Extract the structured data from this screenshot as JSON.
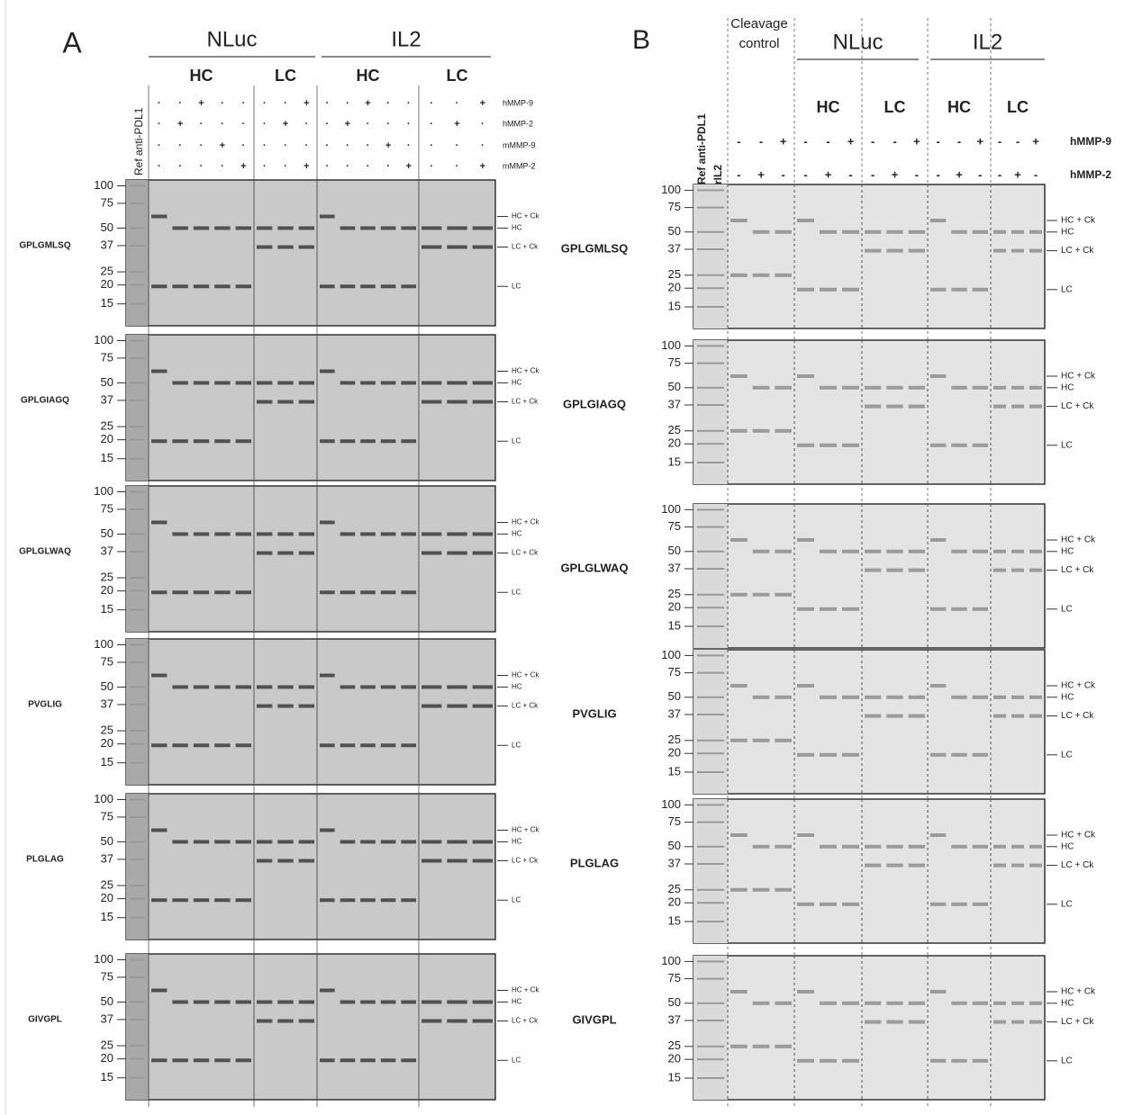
{
  "panel_a": {
    "label": "A",
    "groups": [
      "NLuc",
      "IL2"
    ],
    "subgroups": [
      "HC",
      "LC",
      "HC",
      "LC"
    ],
    "reference_lane": "Ref anti-PDL1",
    "treatments": [
      "hMMP-9",
      "hMMP-2",
      "mMMP-9",
      "mMMP-2"
    ],
    "signs": [
      [
        [
          "·",
          "·",
          "+",
          "·",
          "·"
        ],
        [
          "·",
          "+",
          "·",
          "·",
          "·"
        ],
        [
          "·",
          "·",
          "·",
          "+",
          "·"
        ],
        [
          "·",
          "·",
          "·",
          "·",
          "+"
        ]
      ],
      [
        [
          "·",
          "·",
          "+"
        ],
        [
          "·",
          "+",
          "·"
        ],
        [
          "·",
          "·",
          "·"
        ],
        [
          "·",
          "·",
          "+"
        ]
      ],
      [
        [
          "·",
          "·",
          "+",
          "·",
          "·"
        ],
        [
          "·",
          "+",
          "·",
          "·",
          "·"
        ],
        [
          "·",
          "·",
          "·",
          "+",
          "·"
        ],
        [
          "·",
          "·",
          "·",
          "·",
          "+"
        ]
      ],
      [
        [
          "·",
          "·",
          "+"
        ],
        [
          "·",
          "+",
          "·"
        ],
        [
          "·",
          "·",
          "·"
        ],
        [
          "·",
          "·",
          "+"
        ]
      ]
    ],
    "markers": [
      100,
      75,
      50,
      37,
      25,
      20,
      15
    ],
    "band_labels": [
      "HC + Ck",
      "HC",
      "LC + Ck",
      "LC"
    ],
    "gels": [
      "GPLGMLSQ",
      "GPLGIAGQ",
      "GPLGLWAQ",
      "PVGLIG",
      "PLGLAG",
      "GIVGPL"
    ]
  },
  "panel_b": {
    "label": "B",
    "control_group": "Cleavage control",
    "groups": [
      "NLuc",
      "IL2"
    ],
    "subgroups": [
      "HC",
      "LC",
      "HC",
      "LC"
    ],
    "reference_lanes": [
      "Ref anti-PDL1",
      "rIL2"
    ],
    "treatments": [
      "hMMP-9",
      "hMMP-2"
    ],
    "signs": [
      [
        [
          "-",
          "-",
          "+"
        ],
        [
          "-",
          "+",
          "-"
        ]
      ],
      [
        [
          "-",
          "-",
          "+"
        ],
        [
          "-",
          "+",
          "-"
        ]
      ],
      [
        [
          "-",
          "-",
          "+"
        ],
        [
          "-",
          "+",
          "-"
        ]
      ],
      [
        [
          "-",
          "-",
          "+"
        ],
        [
          "-",
          "+",
          "-"
        ]
      ],
      [
        [
          "-",
          "-",
          "+"
        ],
        [
          "-",
          "+",
          "-"
        ]
      ]
    ],
    "markers": [
      100,
      75,
      50,
      37,
      25,
      20,
      15
    ],
    "band_labels": [
      "HC + Ck",
      "HC",
      "LC + Ck",
      "LC"
    ],
    "gels": [
      "GPLGMLSQ",
      "GPLGIAGQ",
      "GPLGLWAQ",
      "PVGLIG",
      "PLGLAG",
      "GIVGPL"
    ]
  }
}
